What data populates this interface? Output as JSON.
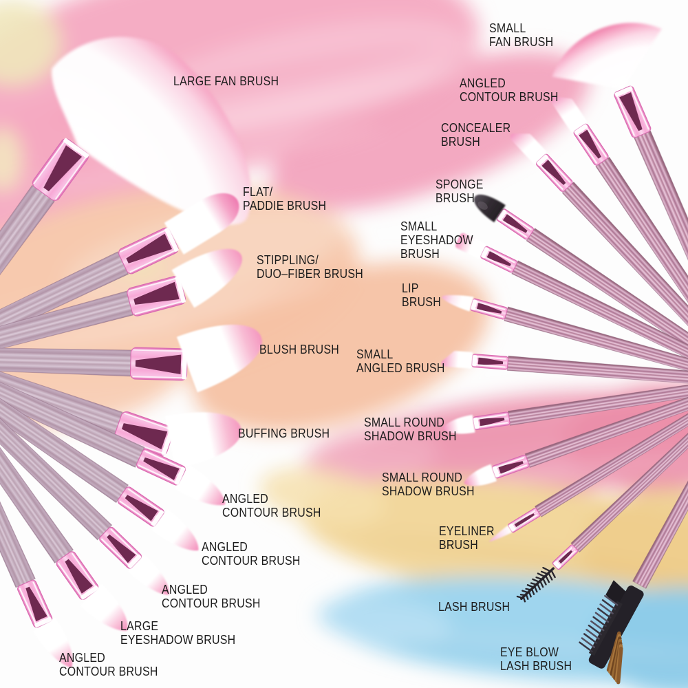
{
  "image": {
    "description": "Labeled diagram of a 22-piece pink makeup brush set laid out in two fans over pastel cosmetic paint smears",
    "total_items": 22
  },
  "palette": {
    "label_text": "#1c1c1c",
    "smear_pink": "#f5adc4",
    "smear_peach": "#f7c9ae",
    "smear_rose": "#ee9db5",
    "smear_yellow": "#f2d79c",
    "smear_blue": "#9fd5ee",
    "smear_cream": "#f0e7bb",
    "handle_mauve": "#c9b2c4",
    "handle_pink_stripe": "#aa7290",
    "ferrule_pink": "#f7a8d6",
    "ferrule_wedge": "#6e2950",
    "bristle_white": "#fdfcfd",
    "bristle_pink_tip": "#f48fb8",
    "sponge_black": "#332d33",
    "comb_black": "#242128",
    "comb_bristle_brown": "#8a5a2c"
  },
  "annotations": [
    {
      "id": "large-fan",
      "text": "LARGE FAN BRUSH"
    },
    {
      "id": "small-fan",
      "text": "SMALL\nFAN BRUSH"
    },
    {
      "id": "angled-contour-right",
      "text": "ANGLED\nCONTOUR BRUSH"
    },
    {
      "id": "concealer",
      "text": "CONCEALER\nBRUSH"
    },
    {
      "id": "sponge",
      "text": "SPONGE\nBRUSH"
    },
    {
      "id": "flat-paddie",
      "text": "FLAT/\nPADDIE BRUSH"
    },
    {
      "id": "small-eyeshadow",
      "text": "SMALL\nEYESHADOW\nBRUSH"
    },
    {
      "id": "stippling",
      "text": "STIPPLING/\nDUO–FIBER BRUSH"
    },
    {
      "id": "lip",
      "text": "LIP\nBRUSH"
    },
    {
      "id": "blush",
      "text": "BLUSH BRUSH"
    },
    {
      "id": "small-angled",
      "text": "SMALL\nANGLED BRUSH"
    },
    {
      "id": "small-round-shadow-1",
      "text": "SMALL ROUND\nSHADOW BRUSH"
    },
    {
      "id": "buffing",
      "text": "BUFFING BRUSH"
    },
    {
      "id": "small-round-shadow-2",
      "text": "SMALL ROUND\nSHADOW BRUSH"
    },
    {
      "id": "angled-contour-mid-1",
      "text": "ANGLED\nCONTOUR BRUSH"
    },
    {
      "id": "eyeliner",
      "text": "EYELINER\nBRUSH"
    },
    {
      "id": "angled-contour-mid-2",
      "text": "ANGLED\nCONTOUR BRUSH"
    },
    {
      "id": "angled-contour-mid-3",
      "text": "ANGLED\nCONTOUR BRUSH"
    },
    {
      "id": "lash",
      "text": "LASH BRUSH"
    },
    {
      "id": "large-eyeshadow",
      "text": "LARGE\nEYESHADOW BRUSH"
    },
    {
      "id": "angled-contour-bottom",
      "text": "ANGLED\nCONTOUR BRUSH"
    },
    {
      "id": "eye-blow-lash",
      "text": "EYE BLOW\nLASH BRUSH"
    }
  ]
}
